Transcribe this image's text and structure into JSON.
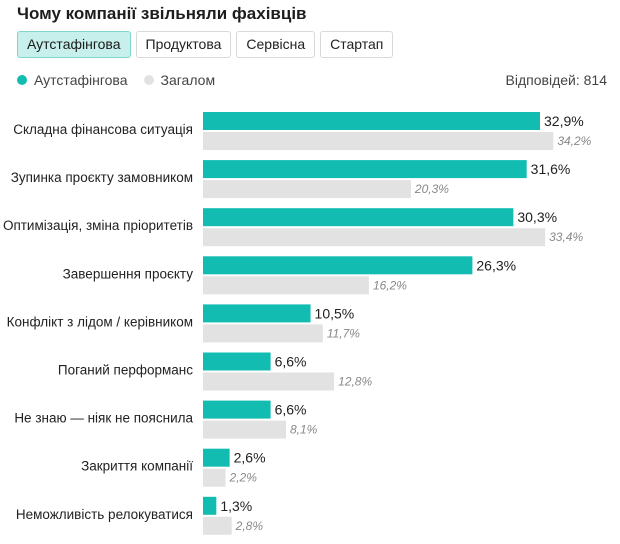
{
  "title": "Чому компанії звільняли фахівців",
  "tabs": [
    {
      "label": "Аутстафінгова",
      "active": true
    },
    {
      "label": "Продуктова",
      "active": false
    },
    {
      "label": "Сервісна",
      "active": false
    },
    {
      "label": "Стартап",
      "active": false
    }
  ],
  "responses": "Відповідей: 814",
  "colors": {
    "primary": "#12bcb0",
    "secondary": "#e2e2e2"
  },
  "chart_data": {
    "type": "bar",
    "orientation": "horizontal",
    "legend_position": "top-left",
    "categories": [
      "Складна фінансова ситуація",
      "Зупинка проєкту замовником",
      "Оптимізація, зміна пріоритетів",
      "Завершення проєкту",
      "Конфлікт з лідом / керівником",
      "Поганий перформанс",
      "Не знаю — ніяк не пояснила",
      "Закриття компанії",
      "Неможливість релокуватися"
    ],
    "series": [
      {
        "name": "Аутстафінгова",
        "values": [
          32.9,
          31.6,
          30.3,
          26.3,
          10.5,
          6.6,
          6.6,
          2.6,
          1.3
        ],
        "labels": [
          "32,9%",
          "31,6%",
          "30,3%",
          "26,3%",
          "10,5%",
          "6,6%",
          "6,6%",
          "2,6%",
          "1,3%"
        ]
      },
      {
        "name": "Загалом",
        "values": [
          34.2,
          20.3,
          33.4,
          16.2,
          11.7,
          12.8,
          8.1,
          2.2,
          2.8
        ],
        "labels": [
          "34,2%",
          "20,3%",
          "33,4%",
          "16,2%",
          "11,7%",
          "12,8%",
          "8,1%",
          "2,2%",
          "2,8%"
        ]
      }
    ]
  }
}
